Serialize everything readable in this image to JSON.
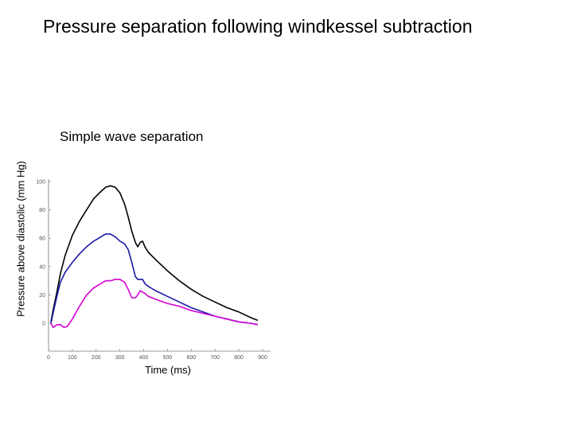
{
  "slide": {
    "title": "Pressure separation following windkessel subtraction"
  },
  "chart_data": {
    "type": "line",
    "title": "Simple wave separation",
    "xlabel": "Time (ms)",
    "ylabel": "Pressure above diastolic (mm Hg)",
    "xlim": [
      0,
      900
    ],
    "ylim": [
      -10,
      105
    ],
    "xticks": [
      0,
      100,
      200,
      300,
      400,
      500,
      600,
      700,
      800,
      900
    ],
    "yticks": [
      0,
      20,
      40,
      60,
      80,
      100
    ],
    "xtick_labels": [
      "0",
      "100",
      "200",
      "300",
      "400",
      "500",
      "600",
      "700",
      "800",
      "900"
    ],
    "ytick_labels": [
      "0",
      "20",
      "40",
      "60",
      "80",
      "100"
    ],
    "grid": false,
    "legend": "none",
    "series": [
      {
        "color": "#000000",
        "x": [
          10,
          20,
          35,
          50,
          70,
          100,
          130,
          160,
          190,
          220,
          240,
          260,
          280,
          300,
          320,
          335,
          350,
          365,
          375,
          385,
          395,
          405,
          420,
          450,
          500,
          550,
          600,
          650,
          700,
          750,
          800,
          850,
          880
        ],
        "y": [
          1,
          10,
          22,
          35,
          48,
          62,
          72,
          80,
          88,
          93,
          96,
          97,
          96,
          92,
          84,
          75,
          65,
          57,
          54,
          57,
          58,
          54,
          50,
          45,
          37,
          30,
          24,
          19,
          15,
          11,
          8,
          4,
          2
        ]
      },
      {
        "color": "#1a1aa6",
        "x": [
          10,
          20,
          35,
          50,
          70,
          100,
          130,
          160,
          190,
          220,
          240,
          260,
          280,
          300,
          320,
          335,
          350,
          365,
          375,
          385,
          395,
          405,
          420,
          450,
          500,
          550,
          600,
          650,
          700,
          750,
          800,
          850,
          880
        ],
        "y": [
          0,
          8,
          19,
          29,
          36,
          43,
          49,
          54,
          58,
          61,
          63,
          63,
          61,
          58,
          56,
          52,
          43,
          33,
          31,
          31,
          31,
          28,
          26,
          23,
          19,
          15,
          11,
          8,
          5,
          3,
          1,
          0,
          -1
        ]
      },
      {
        "color": "#d400d4",
        "x": [
          10,
          20,
          35,
          50,
          65,
          80,
          100,
          130,
          160,
          190,
          220,
          240,
          260,
          280,
          300,
          320,
          335,
          350,
          365,
          375,
          385,
          395,
          405,
          420,
          450,
          500,
          550,
          600,
          650,
          700,
          750,
          800,
          850,
          880
        ],
        "y": [
          0,
          -3,
          -1,
          -1,
          -3,
          -2,
          3,
          12,
          20,
          25,
          28,
          30,
          30,
          31,
          31,
          29,
          24,
          18,
          18,
          20,
          23,
          22,
          21,
          19,
          17,
          14,
          12,
          9,
          7,
          5,
          3,
          1,
          0,
          -1
        ]
      }
    ]
  }
}
